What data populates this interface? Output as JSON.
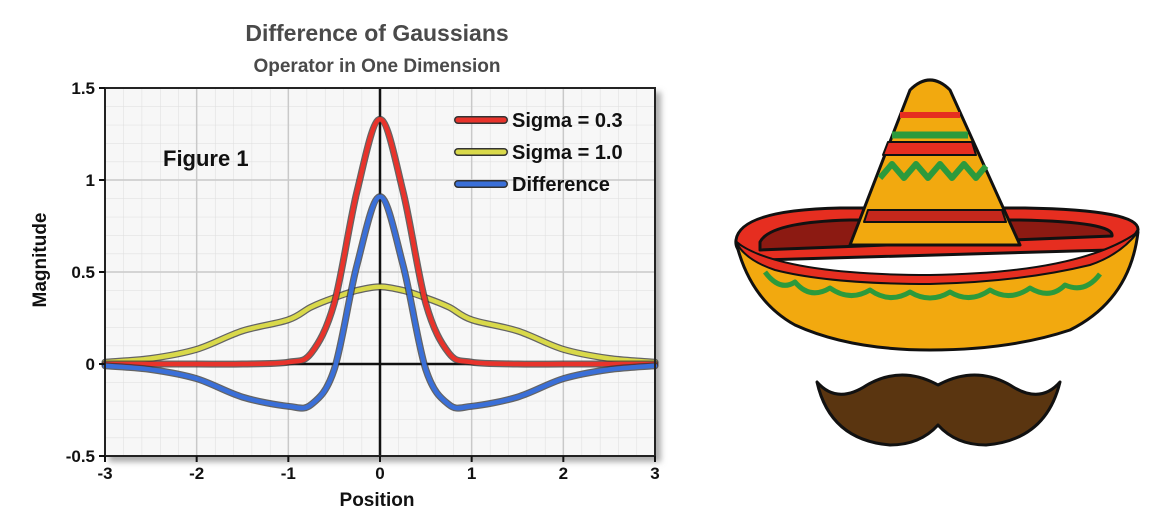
{
  "chart_data": {
    "type": "line",
    "title": "Difference of Gaussians",
    "subtitle": "Operator in One Dimension",
    "xlabel": "Position",
    "ylabel": "Magnitude",
    "xlim": [
      -3,
      3
    ],
    "ylim": [
      -0.5,
      1.5
    ],
    "x_ticks": [
      "-3",
      "-2",
      "-1",
      "0",
      "1",
      "2",
      "3"
    ],
    "y_ticks": [
      "1.5",
      "1",
      "0.5",
      "0",
      "-0.5"
    ],
    "grid": true,
    "legend_position": "top-right",
    "annotation": "Figure 1",
    "x": [
      -3.0,
      -2.5,
      -2.0,
      -1.5,
      -1.0,
      -0.75,
      -0.5,
      -0.25,
      0.0,
      0.25,
      0.5,
      0.75,
      1.0,
      1.5,
      2.0,
      2.5,
      3.0
    ],
    "series": [
      {
        "name": "Sigma = 0.3",
        "color": "#e8332b",
        "values": [
          0.0,
          0.0,
          0.0,
          0.0,
          0.01,
          0.06,
          0.33,
          0.94,
          1.33,
          0.94,
          0.33,
          0.06,
          0.01,
          0.0,
          0.0,
          0.0,
          0.0
        ]
      },
      {
        "name": "Sigma = 1.0",
        "color": "#d9d94a",
        "values": [
          0.01,
          0.03,
          0.08,
          0.18,
          0.24,
          0.31,
          0.36,
          0.4,
          0.42,
          0.4,
          0.36,
          0.31,
          0.24,
          0.18,
          0.08,
          0.03,
          0.01
        ]
      },
      {
        "name": "Difference",
        "color": "#3a6fd8",
        "values": [
          -0.01,
          -0.03,
          -0.08,
          -0.18,
          -0.23,
          -0.22,
          -0.03,
          0.54,
          0.91,
          0.54,
          -0.03,
          -0.22,
          -0.23,
          -0.18,
          -0.08,
          -0.03,
          -0.01
        ]
      }
    ]
  },
  "colors": {
    "hat_yellow": "#f2a90f",
    "hat_red": "#e62e20",
    "hat_green": "#2c9a3c",
    "hat_dark_red": "#8c1a12",
    "mustache": "#5a3510"
  },
  "icons": [
    "sombrero-icon",
    "mustache-icon"
  ]
}
